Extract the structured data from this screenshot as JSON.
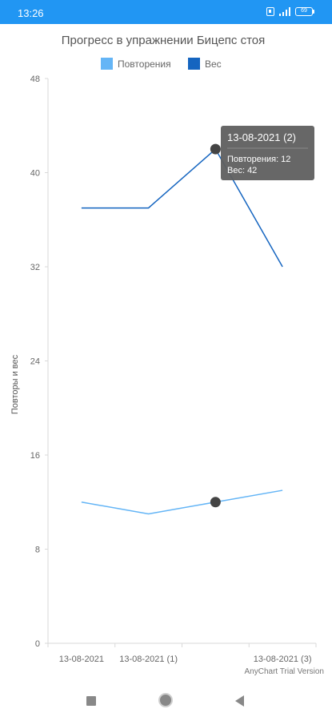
{
  "status_bar": {
    "time": "13:26",
    "battery": "69",
    "color": "#2196f3"
  },
  "chart_data": {
    "type": "line",
    "title": "Прогресс в упражнении Бицепс стоя",
    "xlabel": "",
    "ylabel": "Повторы и вес",
    "categories": [
      "13-08-2021",
      "13-08-2021 (1)",
      "13-08-2021 (2)",
      "13-08-2021 (3)"
    ],
    "x_tick_labels": [
      "13-08-2021",
      "13-08-2021 (1)",
      "",
      "13-08-2021 (3)"
    ],
    "ylim": [
      0,
      48
    ],
    "yticks": [
      0,
      8,
      16,
      24,
      32,
      40,
      48
    ],
    "grid": false,
    "legend_position": "top",
    "series": [
      {
        "name": "Повторения",
        "values": [
          12,
          11,
          12,
          13
        ],
        "color": "#64b5f6"
      },
      {
        "name": "Вес",
        "values": [
          37,
          37,
          42,
          32
        ],
        "color": "#1565c0"
      }
    ],
    "tooltip": {
      "title": "13-08-2021 (2)",
      "lines": [
        "Повторения: 12",
        "Вес: 42"
      ]
    },
    "highlighted_index": 2
  },
  "watermark": "AnyChart Trial Version",
  "nav_bar": {
    "recents_icon": "square-icon",
    "home_icon": "circle-icon",
    "back_icon": "triangle-back-icon"
  }
}
